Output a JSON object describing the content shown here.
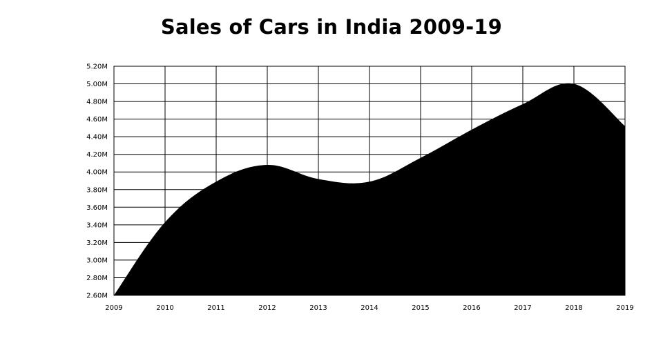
{
  "chart_data": {
    "type": "area",
    "title": "Sales of Cars in India 2009-19",
    "xlabel": "",
    "ylabel": "",
    "x": [
      "2009",
      "2010",
      "2011",
      "2012",
      "2013",
      "2014",
      "2015",
      "2016",
      "2017",
      "2018",
      "2019"
    ],
    "series": [
      {
        "values": [
          2.6,
          3.43,
          3.89,
          4.08,
          3.92,
          3.89,
          4.16,
          4.48,
          4.77,
          5.0,
          4.52
        ]
      }
    ],
    "y_tick_labels": [
      "2.60M",
      "2.80M",
      "3.00M",
      "3.20M",
      "3.40M",
      "3.60M",
      "3.80M",
      "4.00M",
      "4.20M",
      "4.40M",
      "4.60M",
      "4.80M",
      "5.00M",
      "5.20M"
    ],
    "ylim": [
      2.6,
      5.2
    ],
    "unit": "M",
    "grid": true,
    "legend": "none",
    "fill_color": "#000000",
    "grid_color": "#000000"
  }
}
